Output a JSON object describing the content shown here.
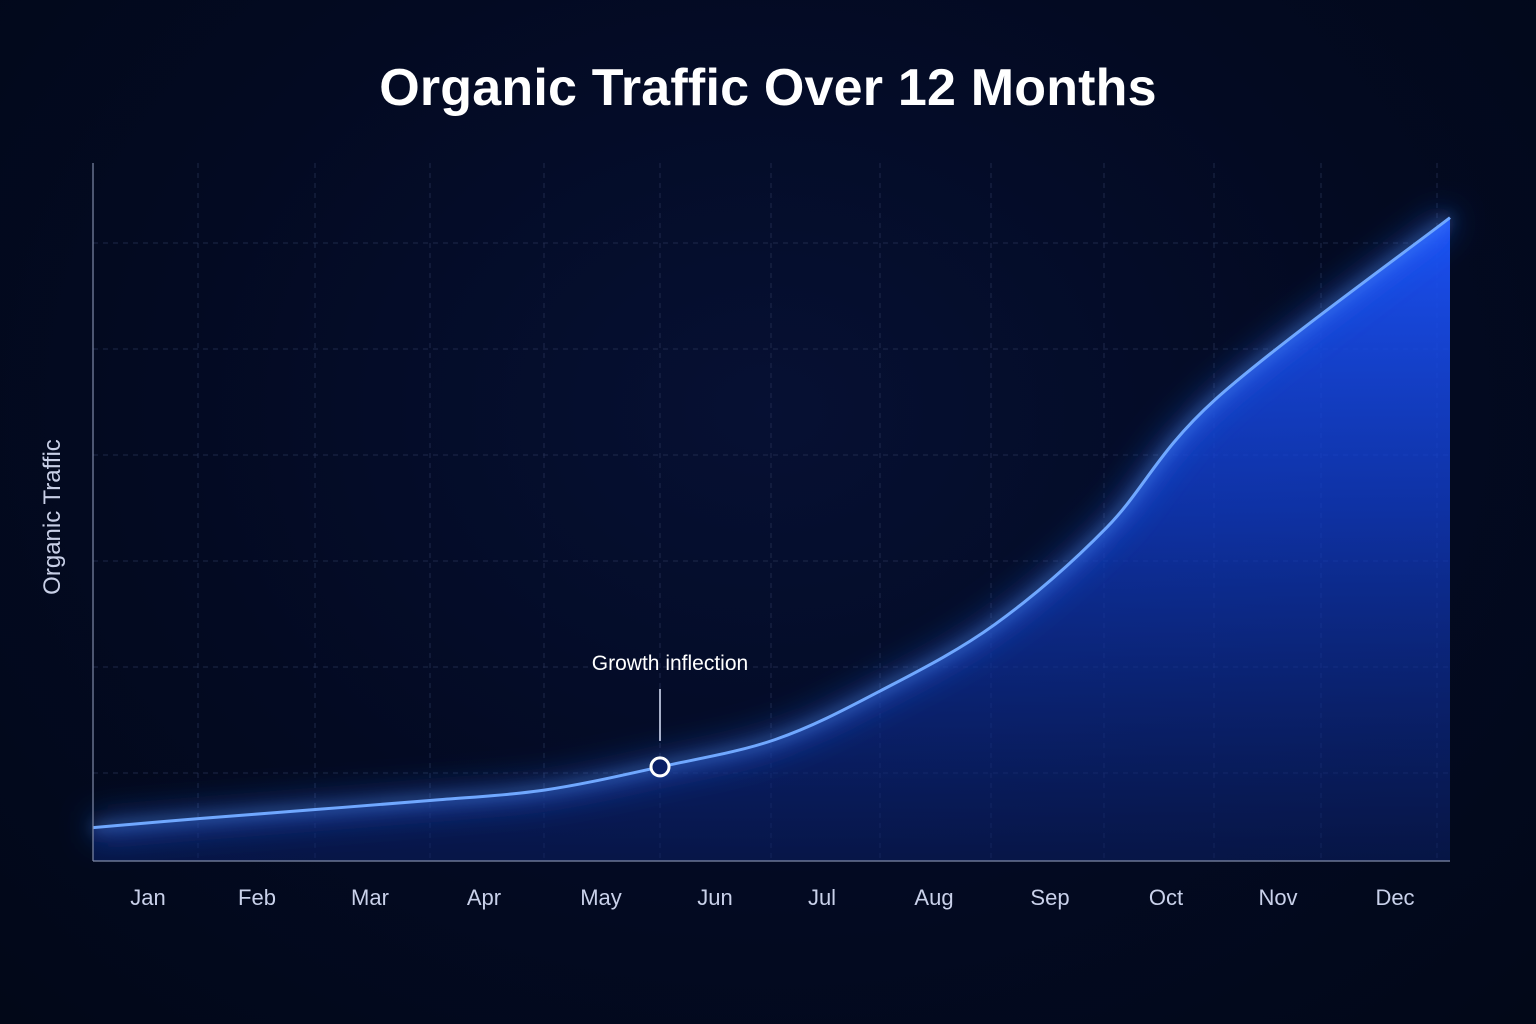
{
  "chart_data": {
    "type": "area",
    "title": "Organic Traffic Over 12 Months",
    "xlabel": "",
    "ylabel": "Organic Traffic",
    "categories": [
      "Jan",
      "Feb",
      "Mar",
      "Apr",
      "May",
      "Jun",
      "Jul",
      "Aug",
      "Sep",
      "Oct",
      "Nov",
      "Dec"
    ],
    "series": [
      {
        "values": [
          5.5,
          7.0,
          8.5,
          10.0,
          11.7,
          15.5,
          20.0,
          28.0,
          39.0,
          55.0,
          76.0,
          106.0
        ]
      }
    ],
    "ylim": [
      0,
      115
    ],
    "y_tick_labels_shown": false,
    "grid": true,
    "legend": "none",
    "annotations": [
      {
        "text": "Growth inflection",
        "at_category": "Jun",
        "value": 15.5
      }
    ],
    "colors": {
      "line": "#6fa8ff",
      "fill": "#1450ff",
      "glow": "#2a6bff",
      "grid": "#2a3558"
    }
  }
}
